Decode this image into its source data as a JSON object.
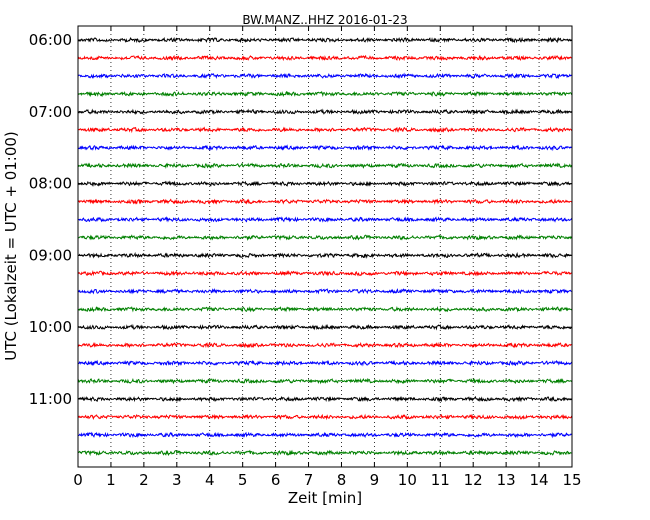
{
  "chart_data": {
    "type": "line",
    "title": "BW.MANZ..HHZ 2016-01-23",
    "xlabel": "Zeit  [min]",
    "ylabel": "UTC (Lokalzeit = UTC + 01:00)",
    "xlim": [
      0,
      15
    ],
    "x_ticks": [
      0,
      1,
      2,
      3,
      4,
      5,
      6,
      7,
      8,
      9,
      10,
      11,
      12,
      13,
      14,
      15
    ],
    "y_tick_labels": [
      "06:00",
      "07:00",
      "08:00",
      "09:00",
      "10:00",
      "11:00"
    ],
    "y_ticks": [
      "06:00",
      "07:00",
      "08:00",
      "09:00",
      "10:00",
      "11:00"
    ],
    "grid": "vertical dotted",
    "colors": [
      "#000000",
      "#ff0000",
      "#0000ff",
      "#008000"
    ],
    "series": [
      {
        "start": "06:00",
        "color": "#000000"
      },
      {
        "start": "06:15",
        "color": "#ff0000"
      },
      {
        "start": "06:30",
        "color": "#0000ff"
      },
      {
        "start": "06:45",
        "color": "#008000"
      },
      {
        "start": "07:00",
        "color": "#000000"
      },
      {
        "start": "07:15",
        "color": "#ff0000"
      },
      {
        "start": "07:30",
        "color": "#0000ff"
      },
      {
        "start": "07:45",
        "color": "#008000"
      },
      {
        "start": "08:00",
        "color": "#000000"
      },
      {
        "start": "08:15",
        "color": "#ff0000"
      },
      {
        "start": "08:30",
        "color": "#0000ff"
      },
      {
        "start": "08:45",
        "color": "#008000"
      },
      {
        "start": "09:00",
        "color": "#000000"
      },
      {
        "start": "09:15",
        "color": "#ff0000"
      },
      {
        "start": "09:30",
        "color": "#0000ff"
      },
      {
        "start": "09:45",
        "color": "#008000"
      },
      {
        "start": "10:00",
        "color": "#000000"
      },
      {
        "start": "10:15",
        "color": "#ff0000"
      },
      {
        "start": "10:30",
        "color": "#0000ff"
      },
      {
        "start": "10:45",
        "color": "#008000"
      },
      {
        "start": "11:00",
        "color": "#000000"
      },
      {
        "start": "11:15",
        "color": "#ff0000"
      },
      {
        "start": "11:30",
        "color": "#0000ff"
      },
      {
        "start": "11:45",
        "color": "#008000"
      }
    ]
  }
}
